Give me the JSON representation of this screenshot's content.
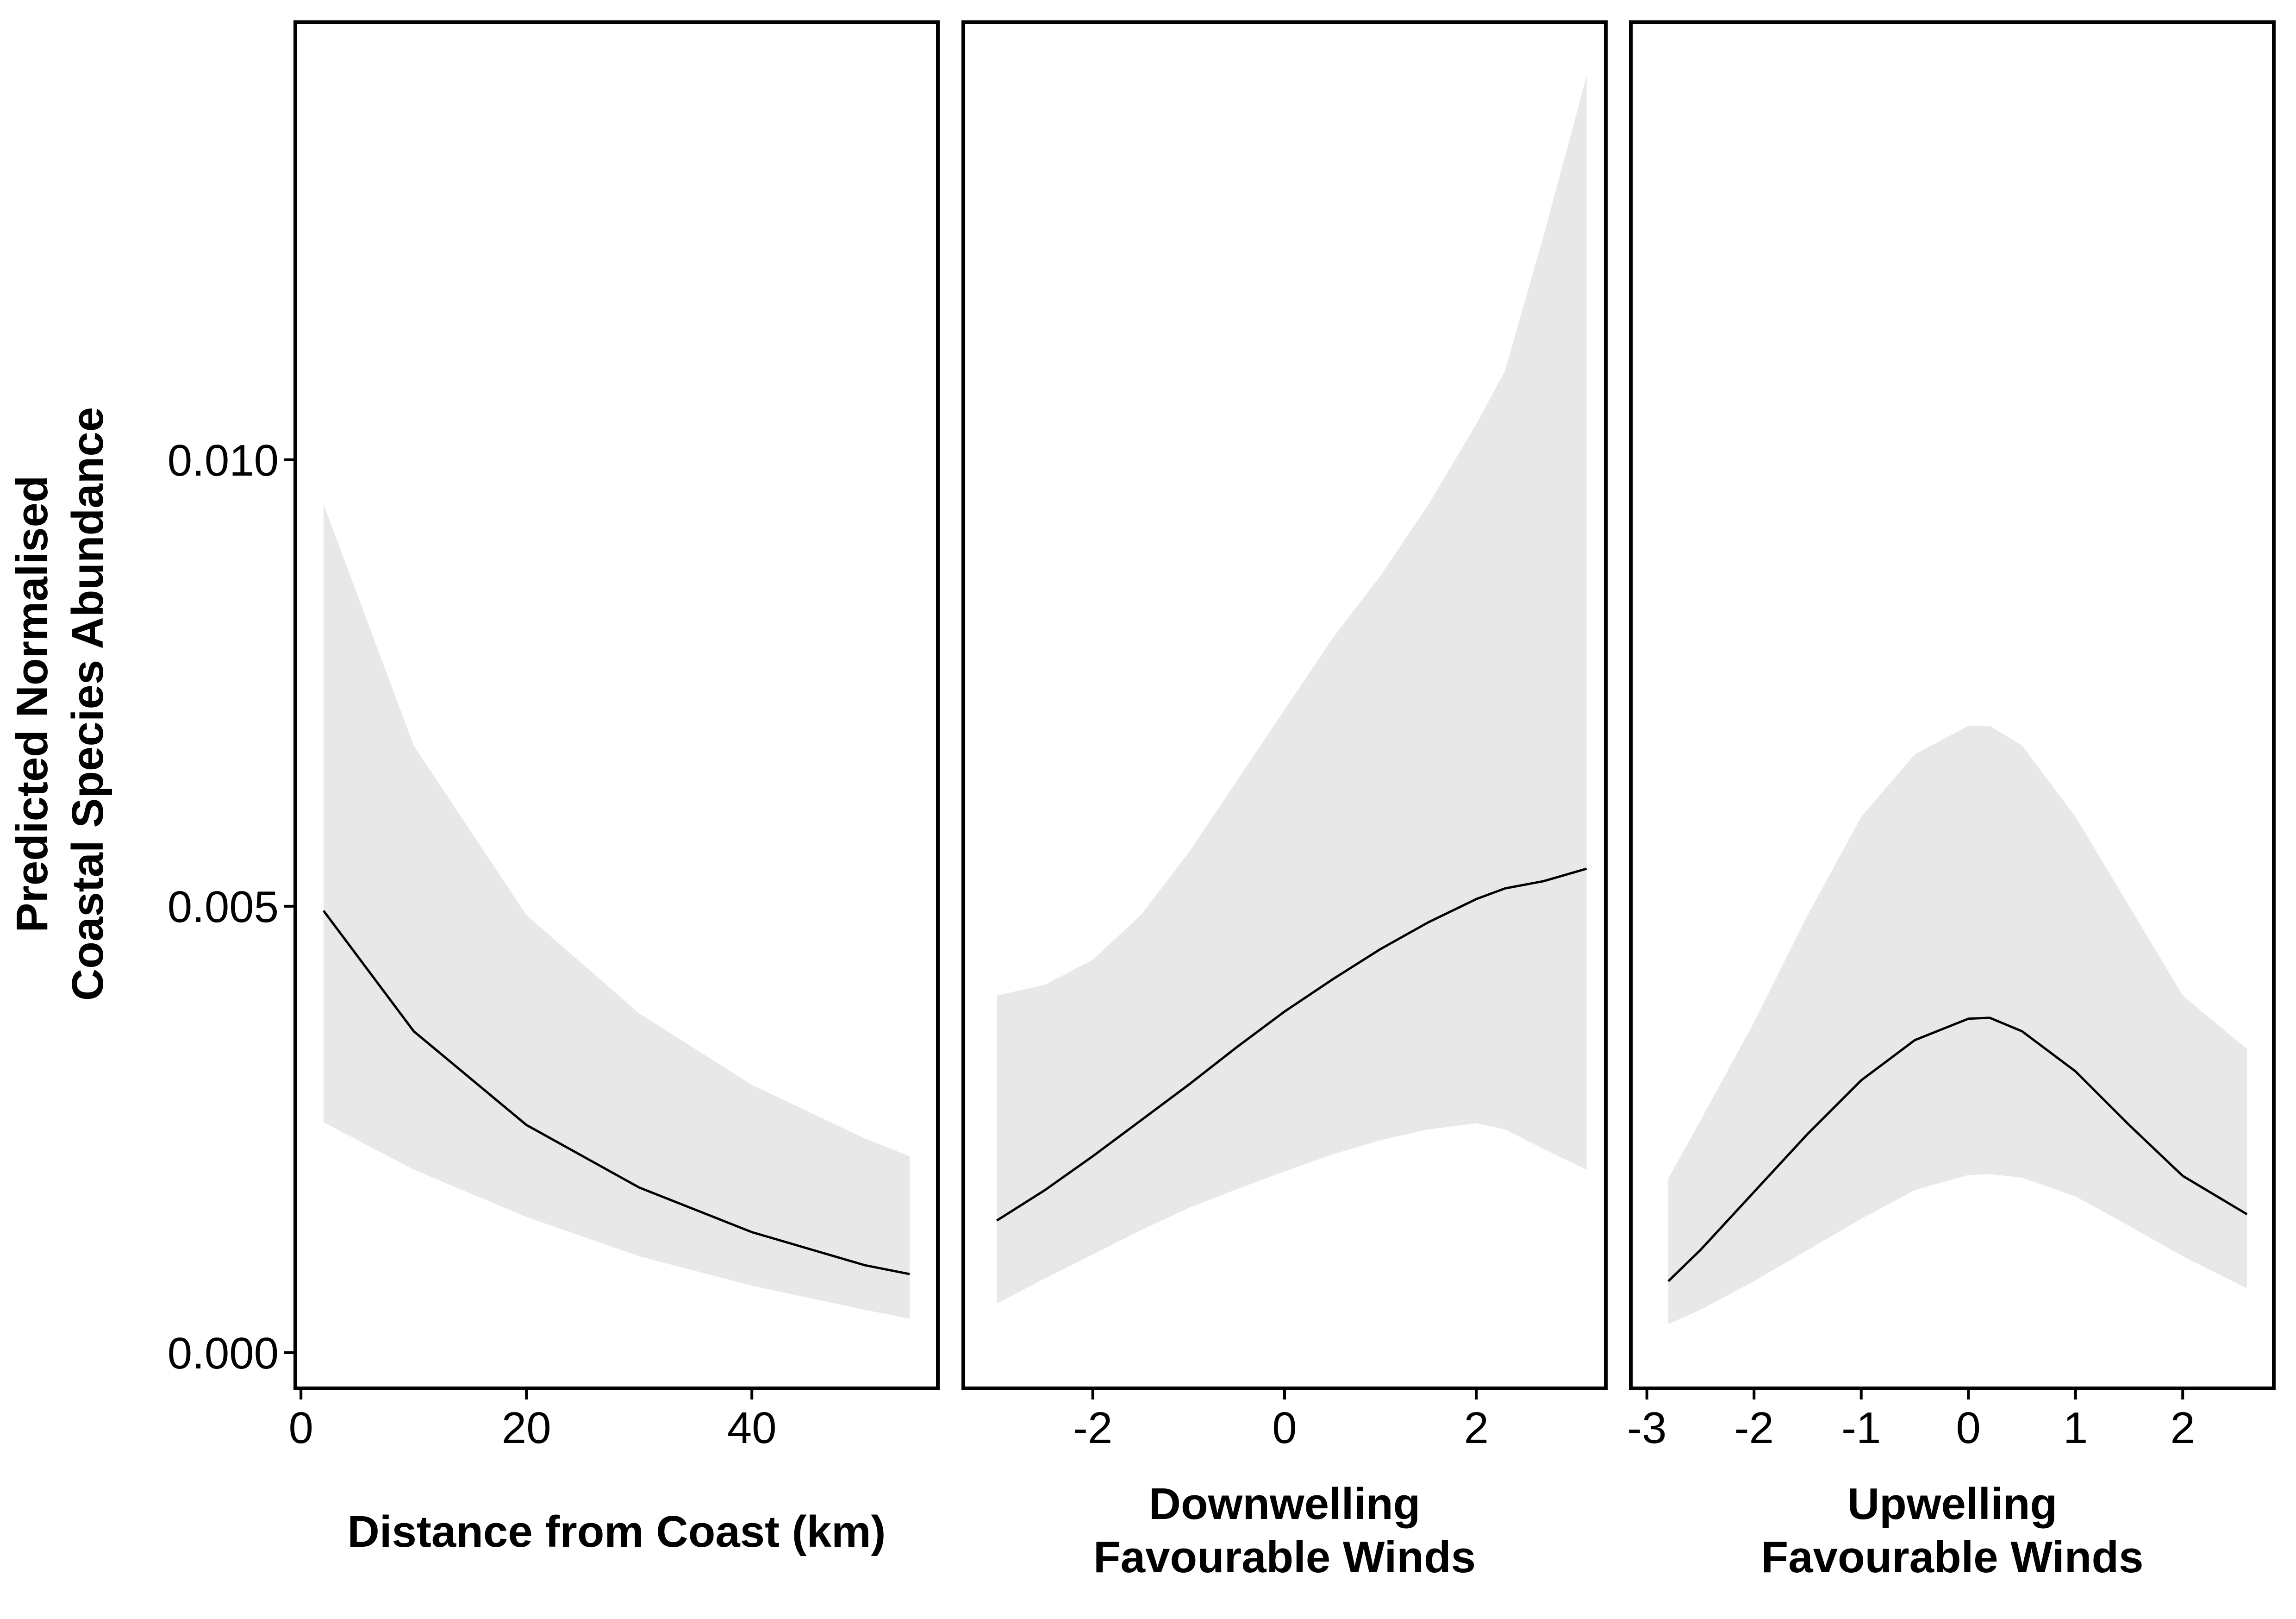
{
  "y_axis": {
    "title_lines": [
      "Predicted Normalised",
      "Coastal Species Abundance"
    ],
    "tick_labels": [
      "0.000",
      "0.005",
      "0.010"
    ],
    "ticks": [
      0,
      0.005,
      0.01
    ],
    "ylim": [
      -0.0004,
      0.0149
    ]
  },
  "chart_data": [
    {
      "type": "line",
      "xlabel_lines": [
        "Distance from Coast (km)"
      ],
      "xlim": [
        -0.5,
        56.5
      ],
      "x_ticks": [
        0,
        20,
        40
      ],
      "x_tick_labels": [
        "0",
        "20",
        "40"
      ],
      "ylim": [
        -0.0004,
        0.0149
      ],
      "confidence_band": true,
      "grid": false,
      "series": [
        {
          "x": [
            2,
            10,
            20,
            30,
            40,
            50,
            54
          ],
          "y": [
            0.00495,
            0.0036,
            0.00255,
            0.00185,
            0.00135,
            0.00098,
            0.00088
          ],
          "lower": [
            0.00258,
            0.00205,
            0.00152,
            0.00108,
            0.00075,
            0.00048,
            0.00038
          ],
          "upper": [
            0.0095,
            0.0068,
            0.0049,
            0.0038,
            0.003,
            0.0024,
            0.0022
          ]
        }
      ]
    },
    {
      "type": "line",
      "xlabel_lines": [
        "Downwelling",
        "Favourable Winds"
      ],
      "xlim": [
        -3.35,
        3.35
      ],
      "x_ticks": [
        -2,
        0,
        2
      ],
      "x_tick_labels": [
        "-2",
        "0",
        "2"
      ],
      "ylim": [
        -0.0004,
        0.0149
      ],
      "confidence_band": true,
      "grid": false,
      "series": [
        {
          "x": [
            -3.0,
            -2.5,
            -2.0,
            -1.5,
            -1.0,
            -0.5,
            0.0,
            0.5,
            1.0,
            1.5,
            2.0,
            2.3,
            2.7,
            3.15
          ],
          "y": [
            0.00148,
            0.00182,
            0.0022,
            0.0026,
            0.003,
            0.00342,
            0.00382,
            0.00418,
            0.00452,
            0.00482,
            0.00508,
            0.0052,
            0.00528,
            0.00542
          ],
          "lower": [
            0.00055,
            0.00083,
            0.0011,
            0.00137,
            0.00162,
            0.00183,
            0.00203,
            0.00222,
            0.00238,
            0.0025,
            0.00257,
            0.0025,
            0.00228,
            0.00205
          ],
          "upper": [
            0.004,
            0.00412,
            0.0044,
            0.0049,
            0.0056,
            0.0064,
            0.0072,
            0.008,
            0.0087,
            0.0095,
            0.0104,
            0.011,
            0.0125,
            0.0143
          ]
        }
      ]
    },
    {
      "type": "line",
      "xlabel_lines": [
        "Upwelling",
        "Favourable Winds"
      ],
      "xlim": [
        -3.15,
        2.85
      ],
      "x_ticks": [
        -3,
        -2,
        -1,
        0,
        1,
        2
      ],
      "x_tick_labels": [
        "-3",
        "-2",
        "-1",
        "0",
        "1",
        "2"
      ],
      "ylim": [
        -0.0004,
        0.0149
      ],
      "confidence_band": true,
      "grid": false,
      "series": [
        {
          "x": [
            -2.8,
            -2.5,
            -2.0,
            -1.5,
            -1.0,
            -0.5,
            0.0,
            0.2,
            0.5,
            1.0,
            1.5,
            2.0,
            2.6
          ],
          "y": [
            0.0008,
            0.00115,
            0.0018,
            0.00245,
            0.00305,
            0.0035,
            0.00374,
            0.00375,
            0.0036,
            0.00315,
            0.00255,
            0.00198,
            0.00155
          ],
          "lower": [
            0.00032,
            0.00048,
            0.0008,
            0.00115,
            0.0015,
            0.00182,
            0.00199,
            0.002,
            0.00196,
            0.00175,
            0.00142,
            0.00108,
            0.00072
          ],
          "upper": [
            0.00195,
            0.0026,
            0.0037,
            0.0049,
            0.006,
            0.0067,
            0.00702,
            0.00702,
            0.0068,
            0.006,
            0.005,
            0.004,
            0.0034
          ]
        }
      ]
    }
  ],
  "colors": {
    "band": "#e8e8e8",
    "line": "#000000",
    "frame": "#000000",
    "background": "#ffffff"
  }
}
